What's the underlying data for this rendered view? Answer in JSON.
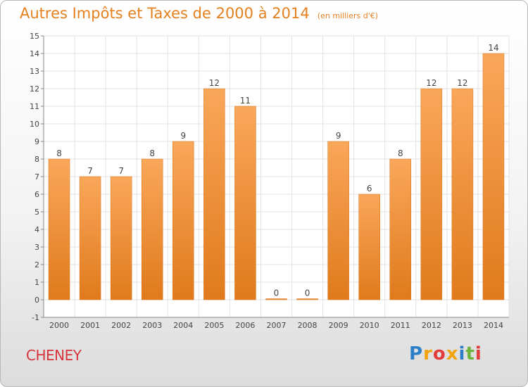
{
  "header": {
    "title": "Autres Impôts et Taxes de 2000 à 2014",
    "unit_note": "(en milliers d'€)"
  },
  "footer": {
    "commune": "CHENEY",
    "logo": [
      "P",
      "r",
      "o",
      "x",
      "i",
      "t",
      "i"
    ]
  },
  "chart_data": {
    "type": "bar",
    "title": "Autres Impôts et Taxes de 2000 à 2014",
    "subtitle": "(en milliers d'€)",
    "categories": [
      "2000",
      "2001",
      "2002",
      "2003",
      "2004",
      "2005",
      "2006",
      "2007",
      "2008",
      "2009",
      "2010",
      "2011",
      "2012",
      "2013",
      "2014"
    ],
    "values": [
      8,
      7,
      7,
      8,
      9,
      12,
      11,
      0,
      0,
      9,
      6,
      8,
      12,
      12,
      14
    ],
    "ylim": [
      -1,
      15
    ],
    "yticks": [
      "-1",
      "0",
      "1",
      "2",
      "3",
      "4",
      "5",
      "6",
      "7",
      "8",
      "9",
      "10",
      "11",
      "12",
      "13",
      "14",
      "15"
    ],
    "grid": true,
    "bar_color_top": "#f9a75a",
    "bar_color_bottom": "#e07a1c",
    "text_color": "#e5801f"
  }
}
